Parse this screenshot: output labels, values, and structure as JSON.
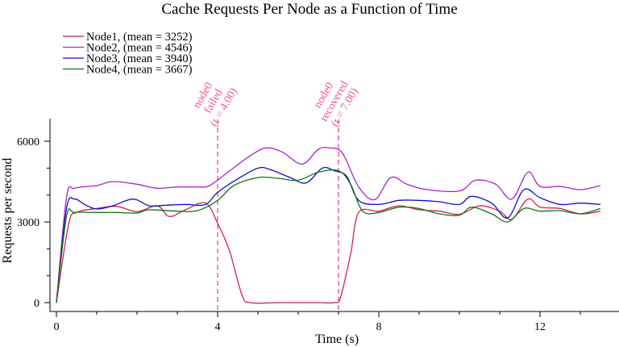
{
  "chart_data": {
    "type": "line",
    "title": "Cache Requests Per Node as a Function of Time",
    "xlabel": "Time (s)",
    "ylabel": "Requests per second",
    "xlim": [
      0,
      13.5
    ],
    "ylim": [
      0,
      6800
    ],
    "x_ticks": [
      0,
      4,
      8,
      12
    ],
    "x_tick_labels": [
      "0",
      "4",
      "8",
      "12"
    ],
    "x_minor_ticks": [
      1,
      2,
      3,
      5,
      6,
      7,
      9,
      10,
      11,
      13
    ],
    "y_ticks": [
      0,
      3000,
      6000
    ],
    "y_tick_labels": [
      "0",
      "3000",
      "6000"
    ],
    "y_minor_ticks": [
      1000,
      2000,
      4000,
      5000
    ],
    "grid": false,
    "legend_position": "top-left",
    "series": [
      {
        "name": "Node1, (mean = 3252)",
        "color": "#cc2255",
        "x": [
          0,
          0.3,
          0.5,
          1.0,
          1.5,
          2.0,
          2.5,
          2.8,
          3.2,
          3.7,
          4.0,
          4.3,
          4.6,
          4.8,
          5.5,
          6.0,
          6.5,
          6.9,
          7.05,
          7.3,
          7.5,
          8.0,
          8.5,
          9.0,
          9.5,
          10.0,
          10.5,
          11.0,
          11.3,
          11.7,
          12.0,
          12.5,
          13.0,
          13.5
        ],
        "values": [
          0,
          2900,
          3350,
          3500,
          3580,
          3380,
          3600,
          3200,
          3450,
          3700,
          2950,
          1900,
          300,
          0,
          0,
          0,
          0,
          0,
          200,
          1800,
          3350,
          3400,
          3600,
          3450,
          3400,
          3280,
          3600,
          3400,
          3100,
          3850,
          3550,
          3500,
          3300,
          3400
        ]
      },
      {
        "name": "Node2, (mean = 4546)",
        "color": "#aa22cc",
        "x": [
          0,
          0.25,
          0.45,
          1.0,
          1.4,
          2.0,
          2.5,
          3.0,
          3.5,
          3.8,
          4.3,
          4.8,
          5.2,
          5.6,
          6.1,
          6.5,
          6.8,
          7.1,
          7.5,
          7.9,
          8.3,
          8.7,
          9.2,
          10.0,
          10.4,
          10.9,
          11.3,
          11.7,
          12.0,
          12.5,
          13.0,
          13.5
        ],
        "values": [
          0,
          3900,
          4250,
          4350,
          4500,
          4400,
          4250,
          4300,
          4300,
          4350,
          4900,
          5450,
          5750,
          5600,
          5150,
          5700,
          5750,
          5550,
          4300,
          3830,
          4650,
          4400,
          4200,
          4150,
          4550,
          4400,
          3850,
          4850,
          4320,
          4320,
          4200,
          4350
        ]
      },
      {
        "name": "Node3, (mean = 3940)",
        "color": "#1111cc",
        "x": [
          0,
          0.25,
          0.45,
          0.7,
          1.0,
          1.4,
          1.9,
          2.3,
          2.7,
          3.2,
          3.7,
          4.0,
          4.5,
          5.0,
          5.3,
          5.8,
          6.2,
          6.6,
          6.9,
          7.2,
          7.5,
          8.0,
          8.5,
          9.0,
          9.5,
          10.0,
          10.3,
          10.8,
          11.2,
          11.6,
          12.0,
          12.5,
          13.0,
          13.5
        ],
        "values": [
          0,
          3500,
          3850,
          3650,
          3480,
          3600,
          3850,
          3600,
          3620,
          3650,
          3650,
          4100,
          4600,
          5000,
          4950,
          4650,
          4450,
          5000,
          4900,
          4700,
          3800,
          3650,
          3800,
          3800,
          3750,
          3650,
          3950,
          3700,
          3150,
          4200,
          3900,
          3650,
          3700,
          3650
        ]
      },
      {
        "name": "Node4, (mean = 3667)",
        "color": "#117711",
        "x": [
          0,
          0.25,
          0.45,
          1.0,
          1.5,
          2.0,
          2.3,
          3.0,
          3.5,
          4.0,
          4.4,
          5.0,
          5.5,
          6.0,
          6.5,
          7.0,
          7.3,
          7.6,
          8.0,
          8.5,
          9.0,
          9.5,
          10.0,
          10.3,
          10.8,
          11.2,
          11.6,
          12.0,
          12.5,
          13.0,
          13.5
        ],
        "values": [
          0,
          3200,
          3350,
          3350,
          3350,
          3330,
          3450,
          3400,
          3420,
          3800,
          4350,
          4650,
          4620,
          4550,
          4850,
          4900,
          4400,
          3400,
          3350,
          3550,
          3500,
          3300,
          3250,
          3550,
          3300,
          3000,
          3500,
          3400,
          3420,
          3300,
          3500
        ]
      }
    ],
    "annotations": [
      {
        "x": 4.0,
        "lines": [
          "node0",
          "failed",
          "(t = 4.00)"
        ],
        "color": "#ee5599"
      },
      {
        "x": 7.0,
        "lines": [
          "node0",
          "recovered",
          "(t = 7.00)"
        ],
        "color": "#ee5599"
      }
    ]
  }
}
